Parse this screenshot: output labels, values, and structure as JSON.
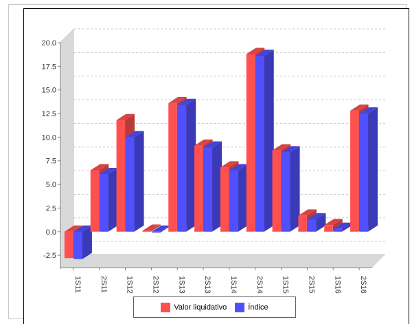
{
  "chart_data": {
    "type": "bar",
    "categories": [
      "1S11",
      "2S11",
      "1S12",
      "2S12",
      "1S13",
      "2S13",
      "1S14",
      "2S14",
      "1S15",
      "2S15",
      "1S16",
      "2S16"
    ],
    "series": [
      {
        "name": "Valor liquidativo",
        "values": [
          -2.8,
          6.5,
          11.8,
          0.1,
          13.6,
          9.1,
          6.8,
          18.8,
          8.6,
          1.7,
          0.7,
          12.8
        ],
        "color": "#ff5050"
      },
      {
        "name": "Índice",
        "values": [
          -2.9,
          6.1,
          10.0,
          -0.1,
          13.4,
          8.9,
          6.5,
          18.6,
          8.4,
          1.3,
          0.3,
          12.5
        ],
        "color": "#5050ff"
      }
    ],
    "title": "",
    "xlabel": "",
    "ylabel": "",
    "ylim": [
      -3.8,
      20.0
    ],
    "yticks": [
      "20.0",
      "17.5",
      "15.0",
      "12.5",
      "10.0",
      "7.5",
      "5.0",
      "2.5",
      "0.0",
      "-2.5"
    ],
    "ytick_values": [
      20,
      17.5,
      15,
      12.5,
      10,
      7.5,
      5,
      2.5,
      0,
      -2.5
    ],
    "grid": true,
    "legend_position": "bottom",
    "style": "3d"
  }
}
